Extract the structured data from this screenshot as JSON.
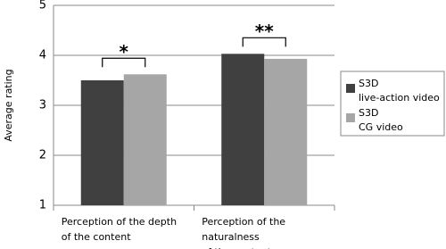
{
  "chart_data": {
    "type": "bar",
    "y_label": "Average rating",
    "categories": [
      "Perception of the depth\nof the content",
      "Perception of the naturalness\nof the content"
    ],
    "series": [
      {
        "name": "S3D\nlive-action video",
        "color": "#404040",
        "values": [
          3.5,
          4.03
        ]
      },
      {
        "name": "S3D\nCG video",
        "color": "#a6a6a6",
        "values": [
          3.62,
          3.93
        ]
      }
    ],
    "annotations": [
      "*",
      "**"
    ],
    "ylim": [
      1,
      5
    ],
    "yticks": [
      1,
      2,
      3,
      4,
      5
    ],
    "grid": true
  }
}
